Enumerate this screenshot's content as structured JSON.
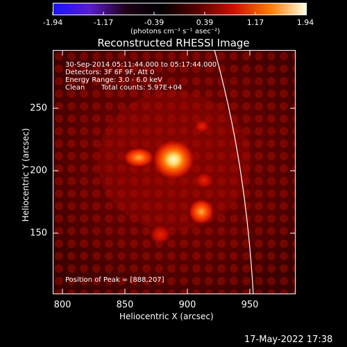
{
  "colorbar": {
    "tick_labels": [
      "-1.94",
      "-1.17",
      "-0.39",
      "0.39",
      "1.17",
      "1.94"
    ],
    "units": "(photons cm⁻² s⁻¹ asec⁻²)",
    "colors": [
      "#1a14ff",
      "#5a1ccf",
      "#200018",
      "#000000",
      "#5a0000",
      "#cc1100",
      "#ff7a00",
      "#ffffe0"
    ]
  },
  "title": "Reconstructed RHESSI Image",
  "info": {
    "time_range": "30-Sep-2014 05:11:44.000 to 05:17:44.000",
    "detectors": "Detectors: 3F 6F 9F, Att 0",
    "energy": "Energy Range: 3.0 - 6.0 keV",
    "method": "Clean",
    "counts": "Total counts: 5.97E+04",
    "peak": "Position of Peak = [888,207]"
  },
  "axes": {
    "xlabel": "Heliocentric X (arcsec)",
    "ylabel": "Heliocentric Y (arcsec)",
    "xticks": [
      "800",
      "850",
      "900",
      "950"
    ],
    "yticks": [
      "150",
      "200",
      "250"
    ]
  },
  "footer": {
    "timestamp": "17-May-2022 17:38"
  }
}
